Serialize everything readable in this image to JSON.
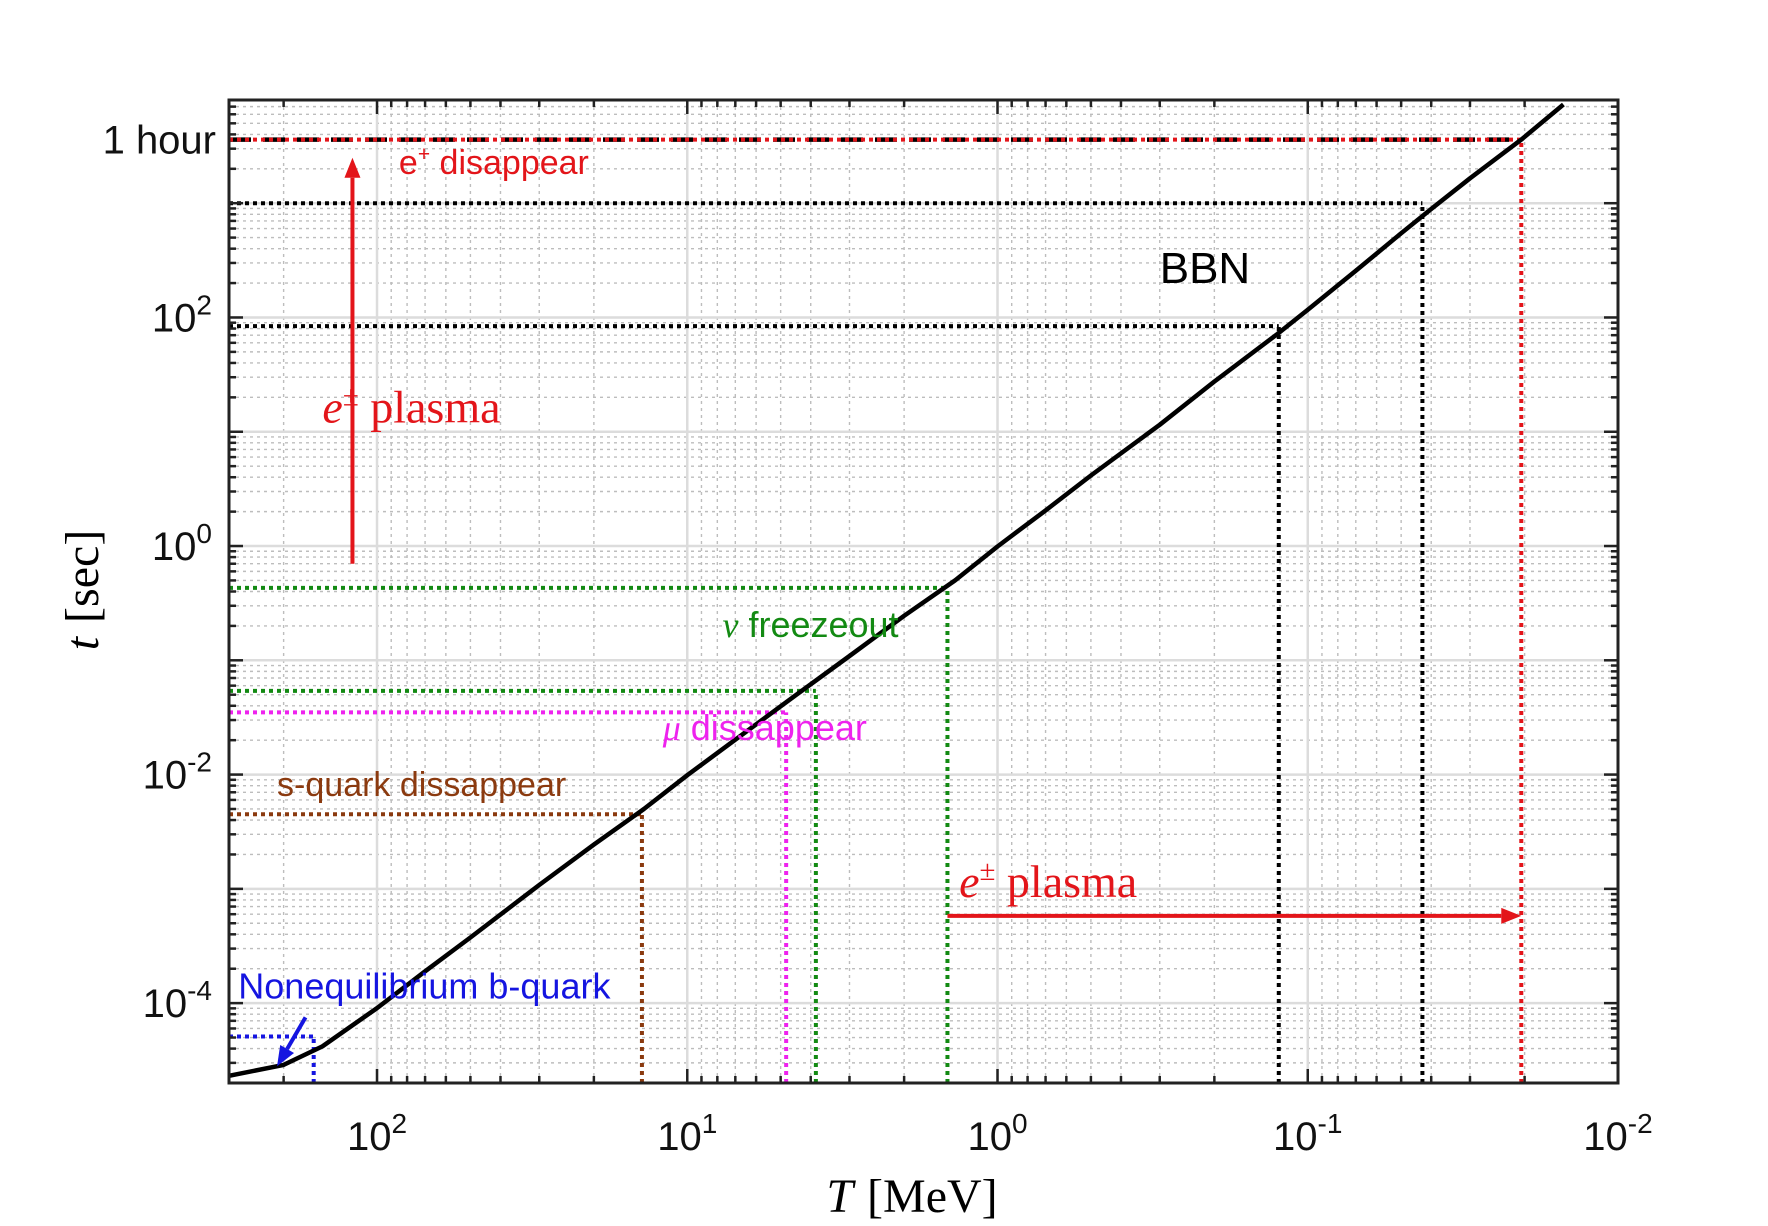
{
  "chart_data": {
    "type": "line",
    "title": "",
    "xlabel_var": "T",
    "xlabel_unit": "[MeV]",
    "ylabel_var": "t",
    "ylabel_unit": "[sec]",
    "x_scale": "log",
    "y_scale": "log",
    "x_reversed": true,
    "xlim": [
      300,
      0.01
    ],
    "ylim": [
      2e-05,
      8000
    ],
    "grid": true,
    "x_ticks": [
      {
        "value": 100,
        "base": "10",
        "exp": "2"
      },
      {
        "value": 10,
        "base": "10",
        "exp": "1"
      },
      {
        "value": 1,
        "base": "10",
        "exp": "0"
      },
      {
        "value": 0.1,
        "base": "10",
        "exp": "-1"
      },
      {
        "value": 0.01,
        "base": "10",
        "exp": "-2"
      }
    ],
    "y_ticks": [
      {
        "value": 0.0001,
        "base": "10",
        "exp": "-4"
      },
      {
        "value": 0.01,
        "base": "10",
        "exp": "-2"
      },
      {
        "value": 1,
        "base": "10",
        "exp": "0"
      },
      {
        "value": 100,
        "base": "10",
        "exp": "2"
      }
    ],
    "y_extra_tick": {
      "value": 3600,
      "label": "1 hour"
    },
    "series": [
      {
        "color": "#000000",
        "points": [
          [
            300,
            2.31e-05
          ],
          [
            200,
            2.88e-05
          ],
          [
            150,
            4.18e-05
          ],
          [
            100,
            9.05e-05
          ],
          [
            70,
            0.00019
          ],
          [
            50,
            0.000375
          ],
          [
            30,
            0.00108
          ],
          [
            20,
            0.00244
          ],
          [
            13.8,
            0.005
          ],
          [
            10,
            0.00988
          ],
          [
            7,
            0.0202
          ],
          [
            4.5,
            0.0489
          ],
          [
            3,
            0.109
          ],
          [
            2,
            0.245
          ],
          [
            1.37,
            0.5
          ],
          [
            1,
            0.99
          ],
          [
            0.7,
            2.05
          ],
          [
            0.5,
            4.14
          ],
          [
            0.3,
            11.5
          ],
          [
            0.2,
            27.5
          ],
          [
            0.125,
            72
          ],
          [
            0.1,
            117
          ],
          [
            0.07,
            256
          ],
          [
            0.05,
            545
          ],
          [
            0.04,
            890
          ],
          [
            0.03,
            1650
          ],
          [
            0.0205,
            3600
          ],
          [
            0.015,
            7300
          ]
        ]
      }
    ],
    "reference_lines": [
      {
        "kind": "h",
        "y": 3600,
        "x_from": 300,
        "x_to": 0.0205,
        "color": "#000000",
        "style": "dashed"
      },
      {
        "kind": "h",
        "y": 3600,
        "x_from": 300,
        "x_to": 0.0205,
        "color": "#e3151a",
        "style": "dotted"
      },
      {
        "kind": "v",
        "x": 0.0205,
        "y_from": 2e-05,
        "y_to": 3600,
        "color": "#e3151a",
        "style": "dotted"
      },
      {
        "kind": "h",
        "y": 1000,
        "x_from": 300,
        "x_to": 0.0427,
        "color": "#000000",
        "style": "dotted"
      },
      {
        "kind": "v",
        "x": 0.0427,
        "y_from": 2e-05,
        "y_to": 1000,
        "color": "#000000",
        "style": "dotted"
      },
      {
        "kind": "h",
        "y": 84,
        "x_from": 300,
        "x_to": 0.124,
        "color": "#000000",
        "style": "dotted"
      },
      {
        "kind": "v",
        "x": 0.124,
        "y_from": 2e-05,
        "y_to": 84,
        "color": "#000000",
        "style": "dotted"
      },
      {
        "kind": "h",
        "y": 0.43,
        "x_from": 300,
        "x_to": 1.45,
        "color": "#138a13",
        "style": "dotted"
      },
      {
        "kind": "v",
        "x": 1.45,
        "y_from": 2e-05,
        "y_to": 0.43,
        "color": "#138a13",
        "style": "dotted"
      },
      {
        "kind": "h",
        "y": 0.054,
        "x_from": 300,
        "x_to": 3.85,
        "color": "#138a13",
        "style": "dotted"
      },
      {
        "kind": "v",
        "x": 3.85,
        "y_from": 2e-05,
        "y_to": 0.054,
        "color": "#138a13",
        "style": "dotted"
      },
      {
        "kind": "h",
        "y": 0.035,
        "x_from": 300,
        "x_to": 4.8,
        "color": "#ee22ee",
        "style": "dotted"
      },
      {
        "kind": "v",
        "x": 4.8,
        "y_from": 2e-05,
        "y_to": 0.035,
        "color": "#ee22ee",
        "style": "dotted"
      },
      {
        "kind": "h",
        "y": 0.0045,
        "x_from": 300,
        "x_to": 14,
        "color": "#8b3a0f",
        "style": "dotted"
      },
      {
        "kind": "v",
        "x": 14,
        "y_from": 2e-05,
        "y_to": 0.0045,
        "color": "#8b3a0f",
        "style": "dotted"
      },
      {
        "kind": "h",
        "y": 5.1e-05,
        "x_from": 300,
        "x_to": 160,
        "color": "#1515e0",
        "style": "dotted"
      },
      {
        "kind": "v",
        "x": 160,
        "y_from": 2e-05,
        "y_to": 5.1e-05,
        "color": "#1515e0",
        "style": "dotted"
      }
    ],
    "arrows": [
      {
        "color": "#e3151a",
        "x1": 120,
        "y1": 0.7,
        "x2": 120,
        "y2": 2500
      },
      {
        "color": "#e3151a",
        "x1": 1.45,
        "y1": 0.00058,
        "x2": 0.0205,
        "y2": 0.00058
      },
      {
        "color": "#1515e0",
        "x1": 170,
        "y1": 7.5e-05,
        "x2": 210,
        "y2": 2.8e-05
      }
    ],
    "annotations": [
      {
        "id": "e-plus-disappear",
        "text": "e⁺ disappear",
        "x": 85,
        "y": 1800,
        "color": "#e3151a",
        "font": "sans",
        "size": 34
      },
      {
        "id": "bbn",
        "text": "BBN",
        "x": 0.3,
        "y": 200,
        "color": "#000000",
        "font": "sans",
        "size": 44
      },
      {
        "id": "epm-plasma-vertical",
        "text": "e± plasma",
        "x": 150,
        "y": 12,
        "color": "#e3151a",
        "font": "serif",
        "size": 46
      },
      {
        "id": "nu-freezeout",
        "text": "ν freezeout",
        "x": 7.7,
        "y": 0.16,
        "color": "#138a13",
        "font": "sans",
        "size": 36
      },
      {
        "id": "mu-dissappear",
        "text": "μ dissappear",
        "x": 12,
        "y": 0.02,
        "color": "#ee22ee",
        "font": "sans",
        "size": 36
      },
      {
        "id": "s-quark-dissappear",
        "text": "s-quark dissappear",
        "x": 210,
        "y": 0.0065,
        "color": "#8b3a0f",
        "font": "sans",
        "size": 34
      },
      {
        "id": "epm-plasma-horizontal",
        "text": "e± plasma",
        "x": 1.33,
        "y": 0.00085,
        "color": "#e3151a",
        "font": "serif",
        "size": 46
      },
      {
        "id": "nonequilibrium-b-quark",
        "text": "Nonequilibrium b-quark",
        "x": 280,
        "y": 0.00011,
        "color": "#1515e0",
        "font": "sans",
        "size": 36
      }
    ]
  }
}
